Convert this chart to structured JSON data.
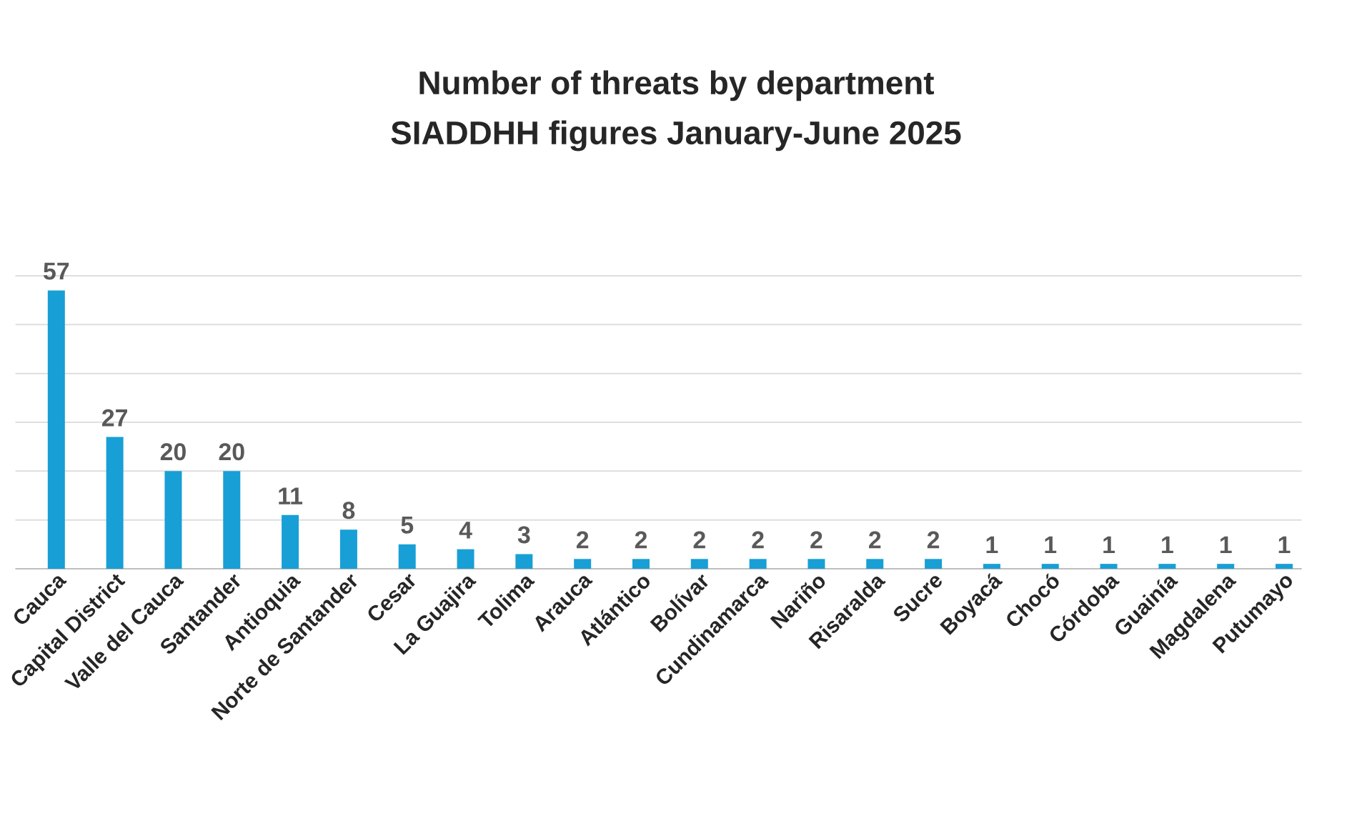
{
  "chart_data": {
    "type": "bar",
    "title": "Number of threats by department",
    "subtitle": "SIADDHH figures January-June 2025",
    "categories": [
      "Cauca",
      "Capital District",
      "Valle del Cauca",
      "Santander",
      "Antioquia",
      "Norte de Santander",
      "Cesar",
      "La Guajira",
      "Tolima",
      "Arauca",
      "Atlántico",
      "Bolívar",
      "Cundinamarca",
      "Nariño",
      "Risaralda",
      "Sucre",
      "Boyacá",
      "Chocó",
      "Córdoba",
      "Guainía",
      "Magdalena",
      "Putumayo"
    ],
    "values": [
      57,
      27,
      20,
      20,
      11,
      8,
      5,
      4,
      3,
      2,
      2,
      2,
      2,
      2,
      2,
      2,
      1,
      1,
      1,
      1,
      1,
      1
    ],
    "color": "#189fd6",
    "ylim": [
      0,
      60
    ],
    "yticks": [
      {
        "value": 0,
        "label": null
      },
      {
        "value": 10,
        "label": null
      },
      {
        "value": 20,
        "label": null
      },
      {
        "value": 30,
        "label": null
      },
      {
        "value": 40,
        "label": null
      },
      {
        "value": 50,
        "label": null
      },
      {
        "value": 60,
        "label": null
      }
    ],
    "tick_labels": "x",
    "grid": "y",
    "data_labels": true
  }
}
